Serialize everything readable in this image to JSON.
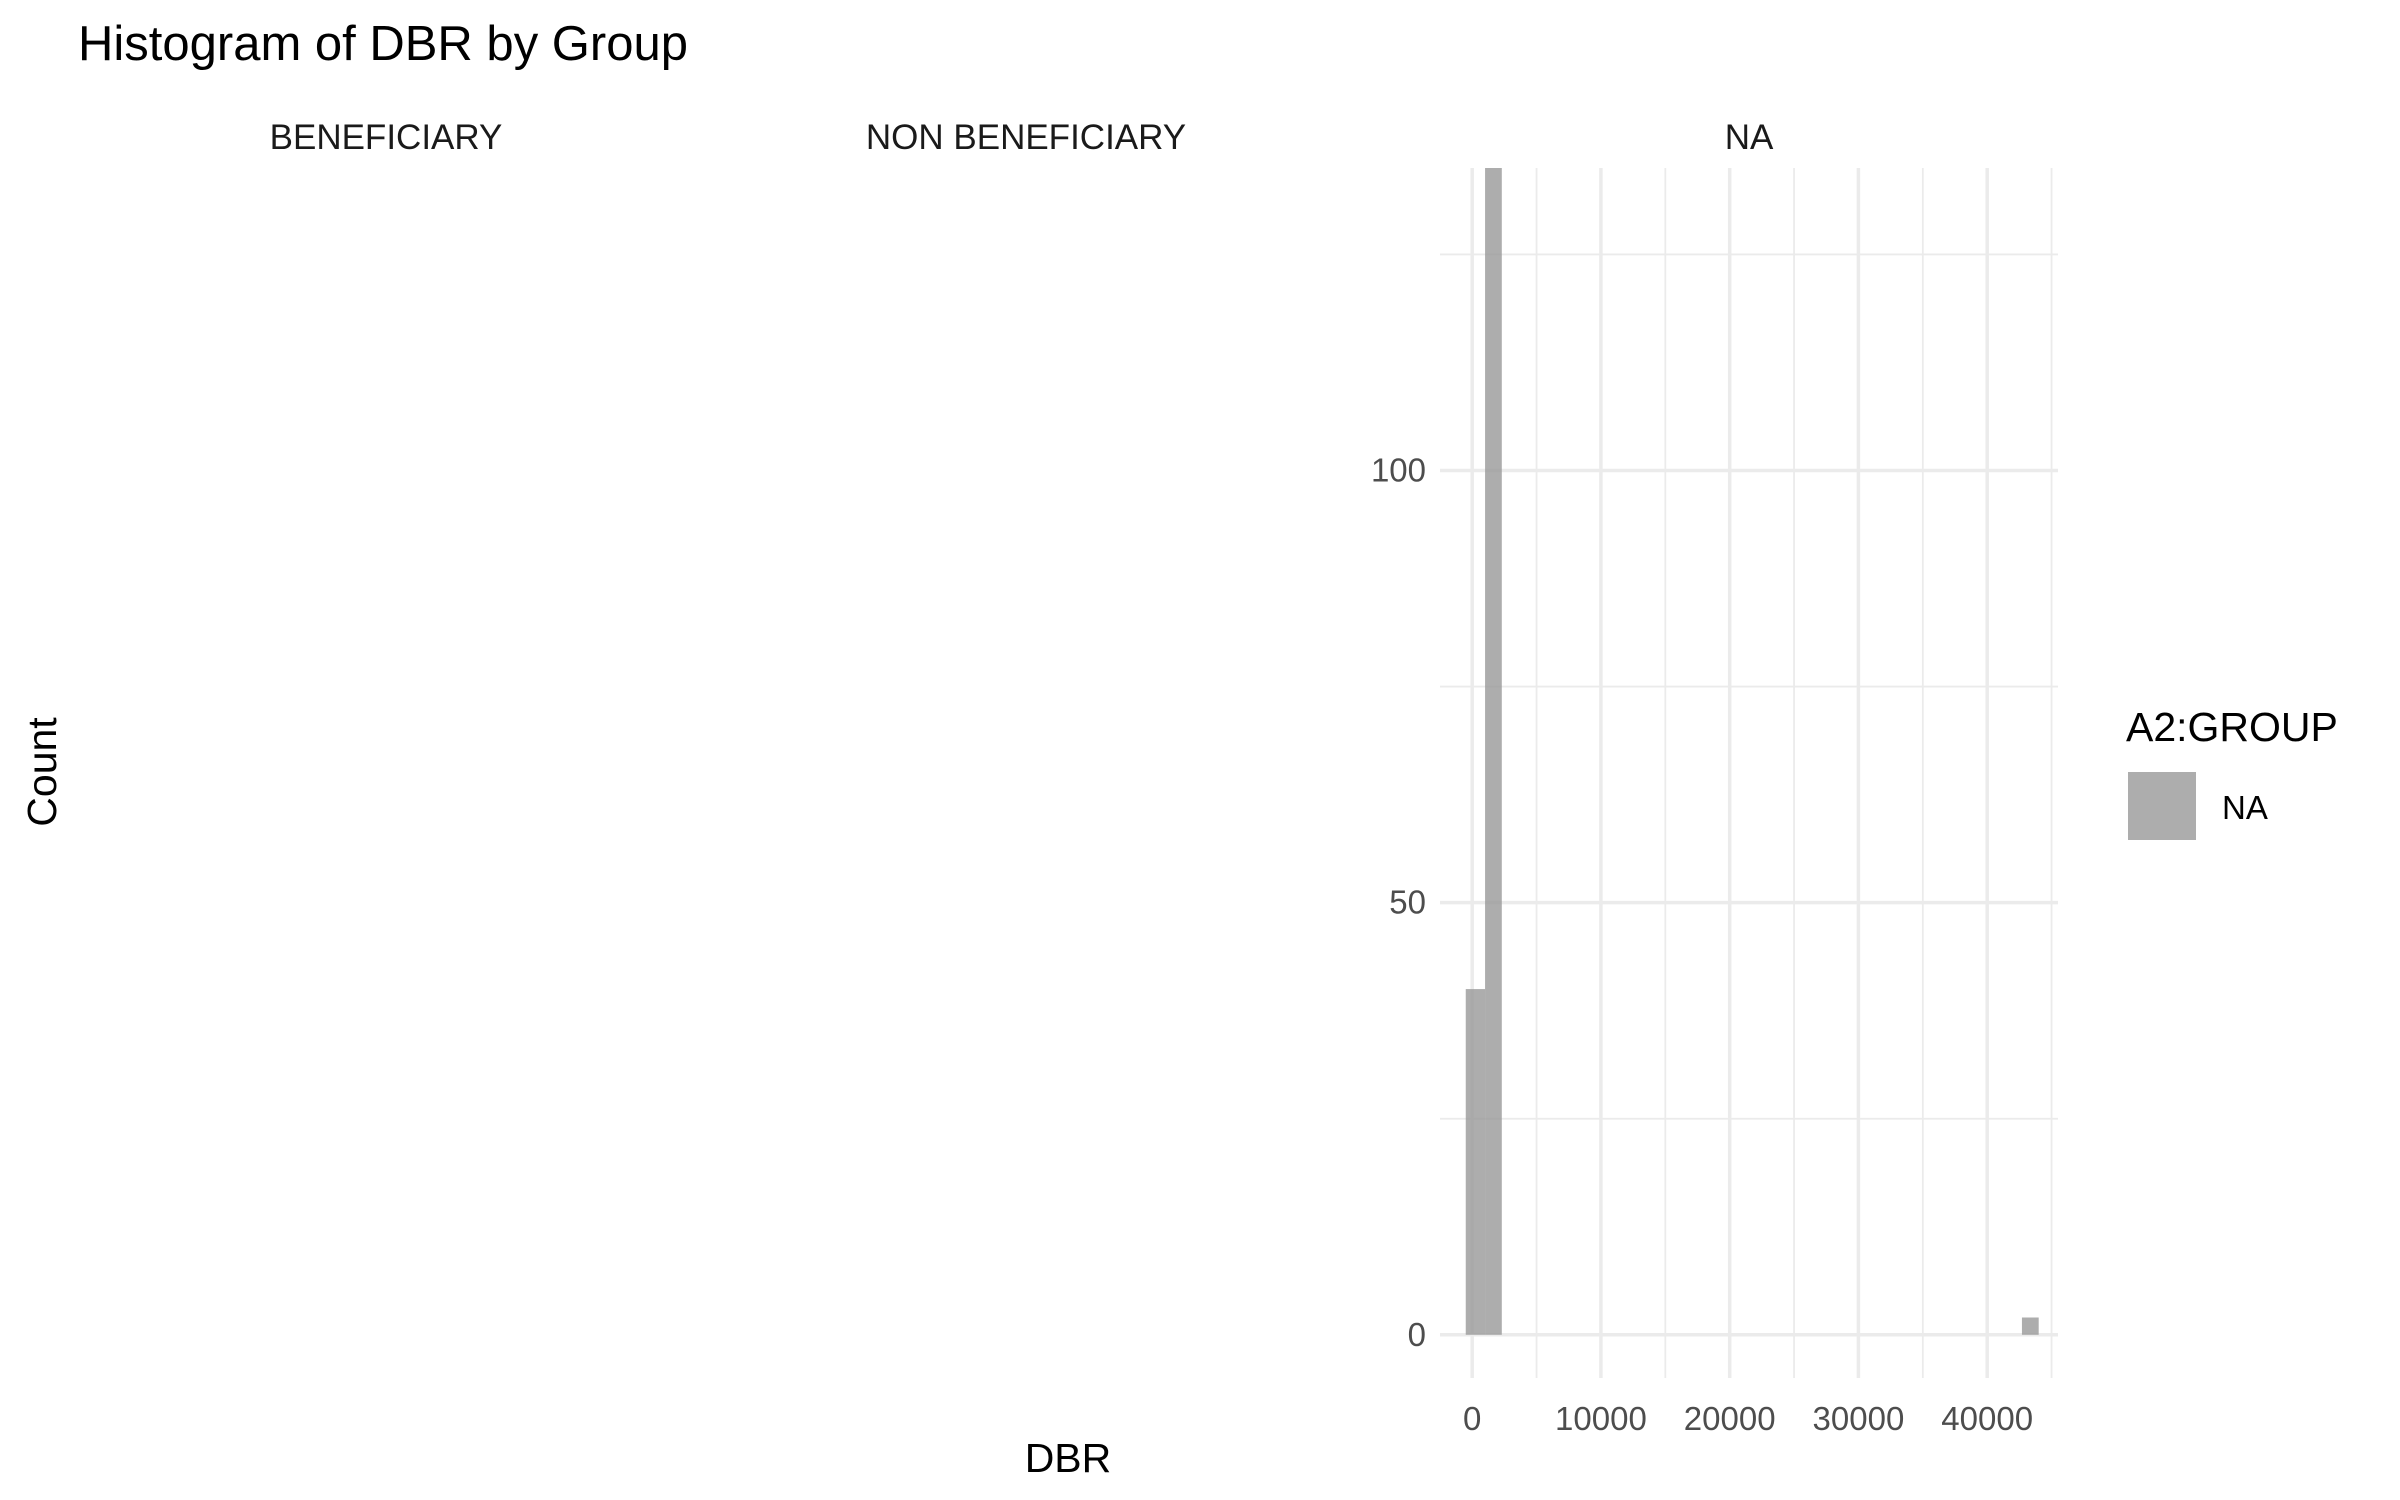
{
  "chart_data": {
    "type": "bar",
    "title": "Histogram of DBR by Group",
    "xlabel": "DBR",
    "ylabel": "Count",
    "facets": [
      "BENEFICIARY",
      "NON BENEFICIARY",
      "NA"
    ],
    "xlim": [
      -2500,
      45500
    ],
    "ylim": [
      -5,
      135
    ],
    "x_ticks": [
      0,
      10000,
      20000,
      30000,
      40000
    ],
    "x_tick_labels": [
      "0",
      "10000",
      "20000",
      "30000",
      "40000"
    ],
    "y_ticks": [
      0,
      50,
      100
    ],
    "y_tick_labels": [
      "0",
      "50",
      "100"
    ],
    "grid": true,
    "legend": {
      "title": "A2:GROUP",
      "position": "right",
      "entries": [
        {
          "label": "NA",
          "color": "#999999"
        }
      ]
    },
    "series": [
      {
        "facet": "NA",
        "color": "#999999",
        "bins": [
          {
            "x0": -500,
            "x1": 1000,
            "count": 40
          },
          {
            "x0": 1000,
            "x1": 2300,
            "count": 135
          },
          {
            "x0": 42700,
            "x1": 44000,
            "count": 2
          }
        ]
      }
    ]
  }
}
